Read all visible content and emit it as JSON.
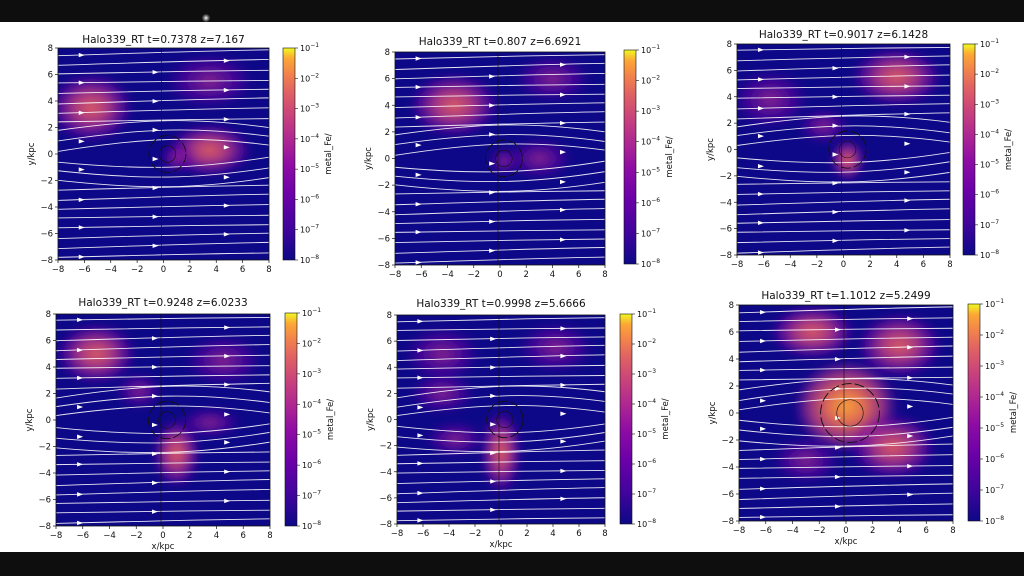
{
  "colors": {
    "background": "#0e0e0e",
    "sheet": "#ffffff",
    "cmap_low": "#0d0887",
    "cmap_mid": "#9c179e",
    "cmap_high": "#f0f921",
    "streamline": "#ffffff"
  },
  "chart_data": [
    {
      "type": "heatmap",
      "title": "Halo339_RT  t=0.7378 z=7.167",
      "xlabel": "",
      "ylabel": "y/kpc",
      "xlim": [
        -8,
        8
      ],
      "ylim": [
        -8,
        8
      ],
      "xticks": [
        "−8",
        "−6",
        "−4",
        "−2",
        "0",
        "2",
        "4",
        "6",
        "8"
      ],
      "yticks": [
        "8",
        "6",
        "4",
        "2",
        "0",
        "−2",
        "−4",
        "−6",
        "−8"
      ],
      "colorbar": {
        "label": "metal_Fe/",
        "scale": "log",
        "range": [
          1e-08,
          0.1
        ],
        "ticks": [
          "10",
          "10",
          "10",
          "10",
          "10",
          "10",
          "10",
          "10"
        ],
        "exponents": [
          "−1",
          "−2",
          "−3",
          "−4",
          "−5",
          "−6",
          "−7",
          "−8"
        ]
      },
      "overlay": "streamlines"
    },
    {
      "type": "heatmap",
      "title": "Halo339_RT  t=0.807 z=6.6921",
      "xlabel": "",
      "ylabel": "y/kpc",
      "xlim": [
        -8,
        8
      ],
      "ylim": [
        -8,
        8
      ],
      "xticks": [
        "−8",
        "−6",
        "−4",
        "−2",
        "0",
        "2",
        "4",
        "6",
        "8"
      ],
      "yticks": [
        "8",
        "6",
        "4",
        "2",
        "0",
        "−2",
        "−4",
        "−6",
        "−8"
      ],
      "colorbar": {
        "label": "metal_Fe/",
        "scale": "log",
        "range": [
          1e-08,
          0.1
        ],
        "ticks": [
          "10",
          "10",
          "10",
          "10",
          "10",
          "10",
          "10",
          "10"
        ],
        "exponents": [
          "−1",
          "−2",
          "−3",
          "−4",
          "−5",
          "−6",
          "−7",
          "−8"
        ]
      },
      "overlay": "streamlines"
    },
    {
      "type": "heatmap",
      "title": "Halo339_RT  t=0.9017 z=6.1428",
      "xlabel": "",
      "ylabel": "y/kpc",
      "xlim": [
        -8,
        8
      ],
      "ylim": [
        -8,
        8
      ],
      "xticks": [
        "−8",
        "−6",
        "−4",
        "−2",
        "0",
        "2",
        "4",
        "6",
        "8"
      ],
      "yticks": [
        "8",
        "6",
        "4",
        "2",
        "0",
        "−2",
        "−4",
        "−6",
        "−8"
      ],
      "colorbar": {
        "label": "metal_Fe/",
        "scale": "log",
        "range": [
          1e-08,
          0.1
        ],
        "ticks": [
          "10",
          "10",
          "10",
          "10",
          "10",
          "10",
          "10",
          "10"
        ],
        "exponents": [
          "−1",
          "−2",
          "−3",
          "−4",
          "−5",
          "−6",
          "−7",
          "−8"
        ]
      },
      "overlay": "streamlines"
    },
    {
      "type": "heatmap",
      "title": "Halo339_RT  t=0.9248 z=6.0233",
      "xlabel": "x/kpc",
      "ylabel": "y/kpc",
      "xlim": [
        -8,
        8
      ],
      "ylim": [
        -8,
        8
      ],
      "xticks": [
        "−8",
        "−6",
        "−4",
        "−2",
        "0",
        "2",
        "4",
        "6",
        "8"
      ],
      "yticks": [
        "8",
        "6",
        "4",
        "2",
        "0",
        "−2",
        "−4",
        "−6",
        "−8"
      ],
      "colorbar": {
        "label": "metal_Fe/",
        "scale": "log",
        "range": [
          1e-08,
          0.1
        ],
        "ticks": [
          "10",
          "10",
          "10",
          "10",
          "10",
          "10",
          "10",
          "10"
        ],
        "exponents": [
          "−1",
          "−2",
          "−3",
          "−4",
          "−5",
          "−6",
          "−7",
          "−8"
        ]
      },
      "overlay": "streamlines"
    },
    {
      "type": "heatmap",
      "title": "Halo339_RT  t=0.9998 z=5.6666",
      "xlabel": "x/kpc",
      "ylabel": "y/kpc",
      "xlim": [
        -8,
        8
      ],
      "ylim": [
        -8,
        8
      ],
      "xticks": [
        "−8",
        "−6",
        "−4",
        "−2",
        "0",
        "2",
        "4",
        "6",
        "8"
      ],
      "yticks": [
        "8",
        "6",
        "4",
        "2",
        "0",
        "−2",
        "−4",
        "−6",
        "−8"
      ],
      "colorbar": {
        "label": "metal_Fe/",
        "scale": "log",
        "range": [
          1e-08,
          0.1
        ],
        "ticks": [
          "10",
          "10",
          "10",
          "10",
          "10",
          "10",
          "10",
          "10"
        ],
        "exponents": [
          "−1",
          "−2",
          "−3",
          "−4",
          "−5",
          "−6",
          "−7",
          "−8"
        ]
      },
      "overlay": "streamlines"
    },
    {
      "type": "heatmap",
      "title": "Halo339_RT  t=1.1012 z=5.2499",
      "xlabel": "x/kpc",
      "ylabel": "y/kpc",
      "xlim": [
        -8,
        8
      ],
      "ylim": [
        -8,
        8
      ],
      "xticks": [
        "−8",
        "−6",
        "−4",
        "−2",
        "0",
        "2",
        "4",
        "6",
        "8"
      ],
      "yticks": [
        "8",
        "6",
        "4",
        "2",
        "0",
        "−2",
        "−4",
        "−6",
        "−8"
      ],
      "colorbar": {
        "label": "metal_Fe/",
        "scale": "log",
        "range": [
          1e-08,
          0.1
        ],
        "ticks": [
          "10",
          "10",
          "10",
          "10",
          "10",
          "10",
          "10",
          "10"
        ],
        "exponents": [
          "−1",
          "−2",
          "−3",
          "−4",
          "−5",
          "−6",
          "−7",
          "−8"
        ]
      },
      "overlay": "streamlines"
    }
  ]
}
